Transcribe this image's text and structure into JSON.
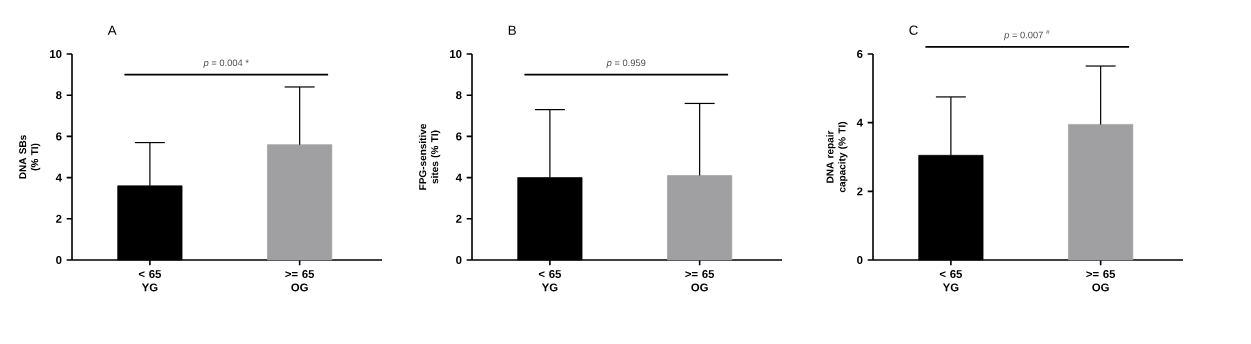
{
  "chart_data": [
    {
      "type": "bar",
      "title": "A",
      "ylabel": "DNA SBs (% TI)",
      "categories": [
        "< 65 YG",
        ">= 65 OG"
      ],
      "values": [
        3.6,
        5.6
      ],
      "colors": [
        "#000000",
        "#a0a0a2"
      ],
      "errors": [
        [
          3.6,
          5.7
        ],
        [
          5.6,
          8.4
        ]
      ],
      "ylim": [
        0,
        10
      ],
      "yticks": [
        0,
        2,
        4,
        6,
        8,
        10
      ],
      "annotations": [
        "*p* = 0.004 *"
      ]
    },
    {
      "type": "bar",
      "title": "B",
      "ylabel": "FPG-sensitive sites (% TI)",
      "categories": [
        "< 65 YG",
        ">= 65 OG"
      ],
      "values": [
        4.0,
        4.1
      ],
      "colors": [
        "#000000",
        "#a0a0a2"
      ],
      "errors": [
        [
          4.0,
          7.3
        ],
        [
          4.1,
          7.6
        ]
      ],
      "ylim": [
        0,
        10
      ],
      "yticks": [
        0,
        2,
        4,
        6,
        8,
        10
      ],
      "annotations": [
        "*p* = 0.959"
      ]
    },
    {
      "type": "bar",
      "title": "C",
      "ylabel": "DNA repair capacity (% TI)",
      "categories": [
        "< 65 YG",
        ">= 65 OG"
      ],
      "values": [
        3.05,
        3.95
      ],
      "colors": [
        "#000000",
        "#a0a0a2"
      ],
      "errors": [
        [
          3.05,
          4.75
        ],
        [
          3.95,
          5.65
        ]
      ],
      "ylim": [
        0,
        6
      ],
      "yticks": [
        0,
        2,
        4,
        6
      ],
      "annotations": [
        "*p* = 0.007 $^{#}$"
      ]
    }
  ]
}
